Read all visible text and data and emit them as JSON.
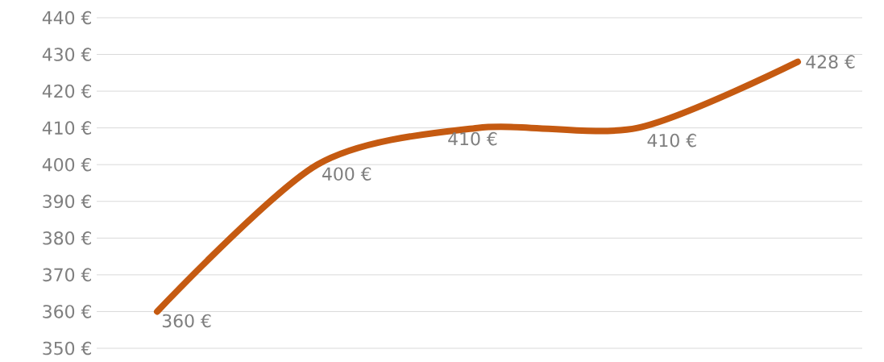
{
  "chart_data": {
    "type": "line",
    "categories": [
      null,
      null,
      null,
      null,
      null
    ],
    "series": [
      {
        "color": "#c55a11",
        "values": [
          360,
          400,
          410,
          410,
          428
        ],
        "value_labels": [
          "360 €",
          "400 €",
          "410 €",
          "410 €",
          "428 €"
        ]
      }
    ],
    "ylim": [
      350,
      440
    ],
    "yticks": [
      {
        "value": 350,
        "label": "350 €"
      },
      {
        "value": 360,
        "label": "360 €"
      },
      {
        "value": 370,
        "label": "370 €"
      },
      {
        "value": 380,
        "label": "380 €"
      },
      {
        "value": 390,
        "label": "390 €"
      },
      {
        "value": 400,
        "label": "400 €"
      },
      {
        "value": 410,
        "label": "410 €"
      },
      {
        "value": 420,
        "label": "420 €"
      },
      {
        "value": 430,
        "label": "430 €"
      },
      {
        "value": 440,
        "label": "440 €"
      }
    ],
    "grid": "y",
    "marker": "none",
    "line_style": "solid"
  }
}
